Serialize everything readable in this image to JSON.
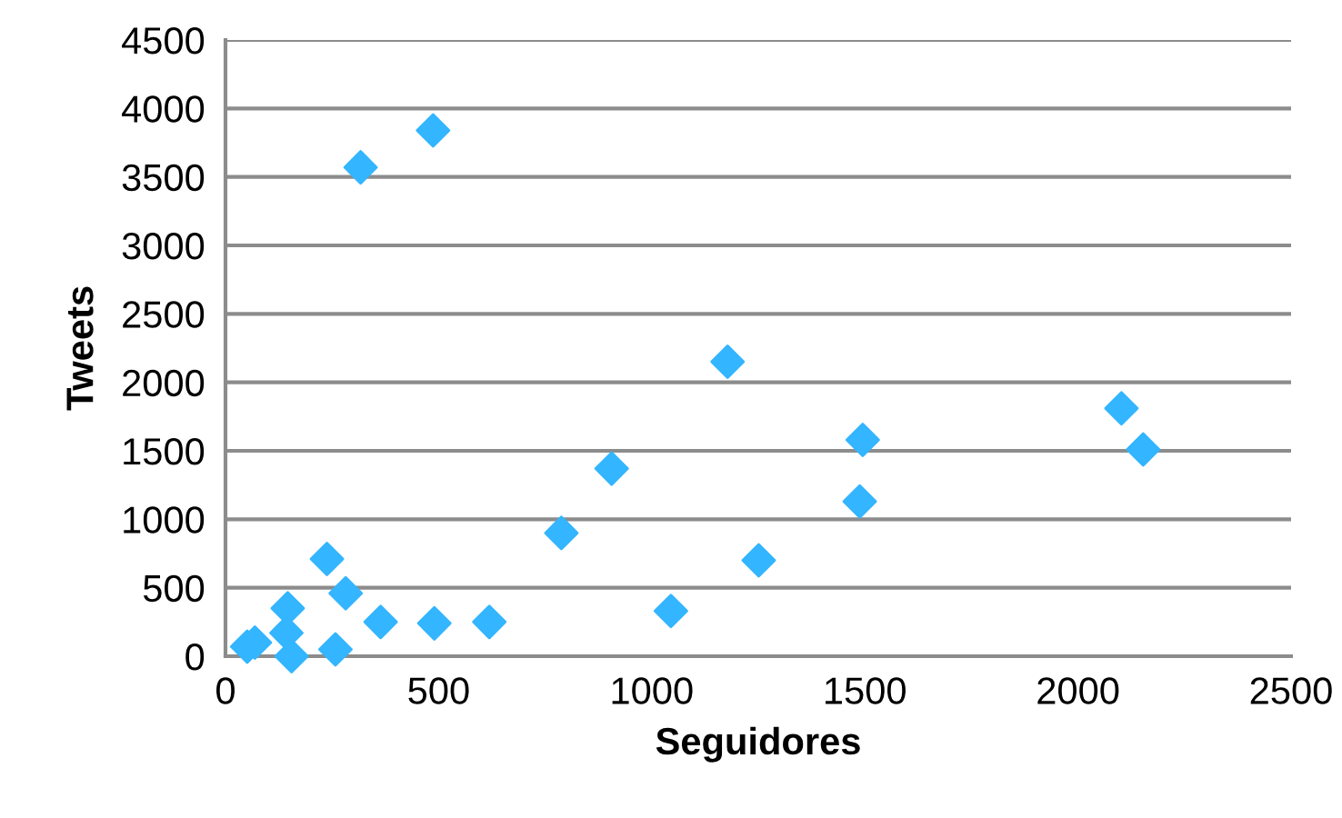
{
  "chart_data": {
    "type": "scatter",
    "xlabel": "Seguidores",
    "ylabel": "Tweets",
    "series": [
      {
        "color": "#33b5ff",
        "x": [
          51,
          69,
          146,
          143,
          155,
          238,
          282,
          258,
          364,
          490,
          619,
          788,
          906,
          1045,
          1178,
          1495,
          1488,
          1251,
          2102,
          2153,
          317,
          487
        ],
        "values": [
          70,
          100,
          350,
          170,
          0,
          710,
          460,
          50,
          250,
          240,
          250,
          900,
          1370,
          330,
          2150,
          1580,
          1130,
          700,
          1810,
          1510,
          3570,
          3840
        ]
      }
    ],
    "xlim": [
      0,
      2500
    ],
    "xticks": [
      0,
      500,
      1000,
      1500,
      2000,
      2500
    ],
    "ylim": [
      0,
      4500
    ],
    "yticks": [
      0,
      500,
      1000,
      1500,
      2000,
      2500,
      3000,
      3500,
      4000,
      4500
    ],
    "grid": "y",
    "marker": "diamond",
    "legend": false
  }
}
